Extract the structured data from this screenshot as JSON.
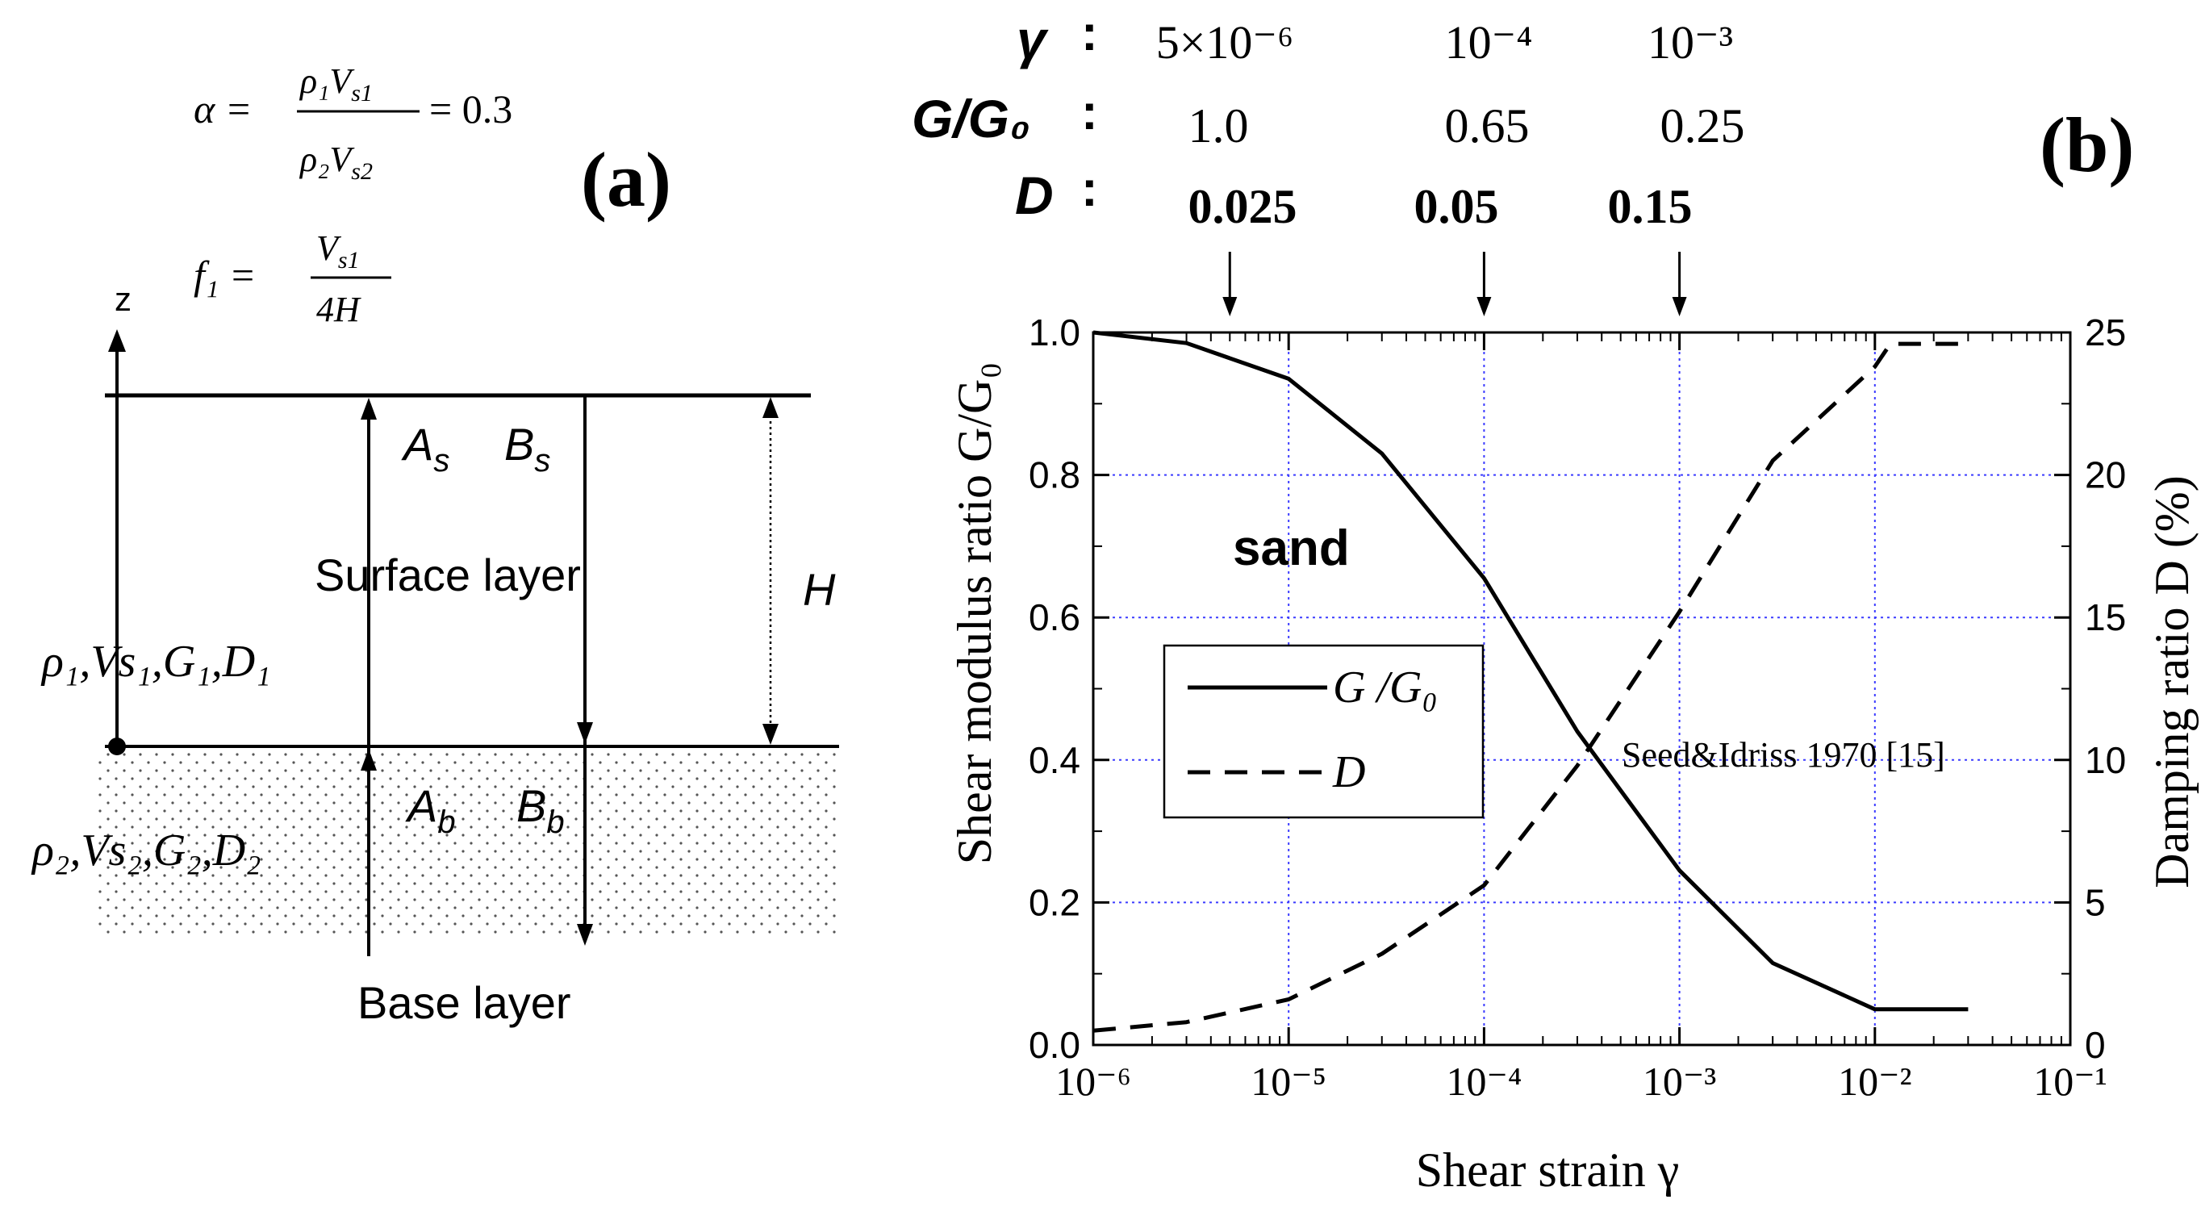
{
  "panel_a": {
    "label": "(a)",
    "alpha": {
      "lhs": "α =",
      "numerator": "ρ₁V",
      "numerator_sub": "s1",
      "denominator": "ρ₂V",
      "denominator_sub": "s2",
      "rhs": "= 0.3"
    },
    "freq": {
      "lhs": "f₁ =",
      "numerator": "V",
      "numerator_sub": "s1",
      "denominator": "4H"
    },
    "z_axis_label": "z",
    "wave_labels": {
      "A_s": "A",
      "A_s_sub": "s",
      "B_s": "B",
      "B_s_sub": "s",
      "A_b": "A",
      "A_b_sub": "b",
      "B_b": "B",
      "B_b_sub": "b"
    },
    "height_label": "H",
    "surface_layer_label": "Surface layer",
    "base_layer_label": "Base layer",
    "layer1_props": "ρ₁,Vs₁,G₁,D₁",
    "layer2_props": "ρ₂,Vs₂,G₂,D₂"
  },
  "panel_b": {
    "label": "(b)",
    "table": {
      "row_labels": [
        "γ",
        "G/G₀",
        "D"
      ],
      "colon": ":",
      "gamma_values": [
        "5×10⁻⁶",
        "10⁻⁴",
        "10⁻³"
      ],
      "gg0_values": [
        "1.0",
        "0.65",
        "0.25"
      ],
      "d_values": [
        "0.025",
        "0.05",
        "0.15"
      ],
      "marker_strains": [
        5e-06,
        0.0001,
        0.001
      ]
    },
    "annotation_sand": "sand",
    "annotation_source": "Seed&Idriss 1970 [15]",
    "legend": {
      "entries": [
        "G /G₀",
        "D"
      ]
    },
    "colors": {
      "grid": "#3b3bff",
      "line": "#000000"
    }
  },
  "chart_data": {
    "type": "line",
    "title": "",
    "xlabel": "Shear strain   γ",
    "ylabel_left": "Shear modulus ratio G/G₀",
    "ylabel_right": "Damping ratio  D (%)",
    "xscale": "log",
    "xlim": [
      1e-06,
      0.1
    ],
    "ylim_left": [
      0,
      1.0
    ],
    "ylim_right": [
      0,
      25
    ],
    "x_tick_labels": [
      "10⁻⁶",
      "10⁻⁵",
      "10⁻⁴",
      "10⁻³",
      "10⁻²",
      "10⁻¹"
    ],
    "x_tick_values": [
      1e-06,
      1e-05,
      0.0001,
      0.001,
      0.01,
      0.1
    ],
    "y_left_tick_labels": [
      "0.0",
      "0.2",
      "0.4",
      "0.6",
      "0.8",
      "1.0"
    ],
    "y_left_tick_values": [
      0,
      0.2,
      0.4,
      0.6,
      0.8,
      1.0
    ],
    "y_right_tick_labels": [
      "0",
      "5",
      "10",
      "15",
      "20",
      "25"
    ],
    "y_right_tick_values": [
      0,
      5,
      10,
      15,
      20,
      25
    ],
    "grid": true,
    "series": [
      {
        "name": "G /G₀",
        "axis": "left",
        "style": "solid",
        "x": [
          1e-06,
          3e-06,
          1e-05,
          3e-05,
          0.0001,
          0.0003,
          0.001,
          0.003,
          0.01,
          0.03
        ],
        "y": [
          1.0,
          0.985,
          0.935,
          0.83,
          0.655,
          0.44,
          0.245,
          0.115,
          0.05,
          0.05
        ]
      },
      {
        "name": "D",
        "axis": "right",
        "style": "dashed",
        "x": [
          1e-06,
          3e-06,
          1e-05,
          3e-05,
          0.0001,
          0.0003,
          0.001,
          0.003,
          0.01,
          0.012,
          0.03
        ],
        "y": [
          0.5,
          0.8,
          1.6,
          3.2,
          5.6,
          9.8,
          15.2,
          20.5,
          23.8,
          24.6,
          24.6
        ]
      }
    ]
  }
}
